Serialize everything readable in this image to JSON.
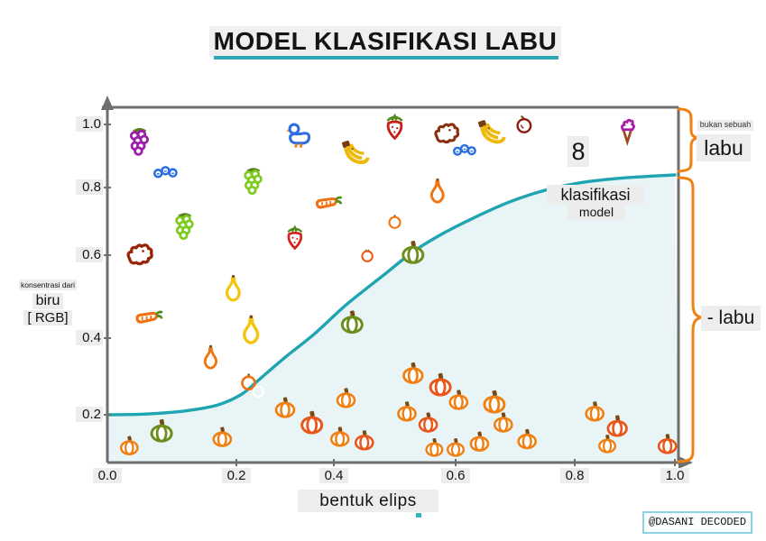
{
  "title": "MODEL KLASIFIKASI LABU",
  "labels": {
    "ylabel_line1": "konsentrasi dari",
    "ylabel_line2": "biru",
    "ylabel_line3": "[ RGB]",
    "xlabel": "bentuk elips",
    "curve_label_line1": "klasifikasi",
    "curve_label_line2": "model",
    "right_top_line1": "bukan sebuah",
    "right_top_line2": "labu",
    "right_bottom": "- labu",
    "watermark": "@DASANI DECODED"
  },
  "colors": {
    "curve": "#1fa5b2",
    "curve_fill": "#e8f4f5",
    "axis": "#6e6e6e",
    "brace": "#f08012",
    "title_underline": "#2aa6b4",
    "chip_bg": "#ededed",
    "watermark_border": "#90d2e3"
  },
  "chart_data": {
    "type": "scatter",
    "title": "MODEL KLASIFIKASI LABU",
    "xlabel": "bentuk elips",
    "ylabel": "konsentrasi dari biru [ RGB]",
    "xlim": [
      0,
      1
    ],
    "ylim": [
      0,
      1
    ],
    "x_ticks": [
      "0.0",
      "0.2",
      "0.4",
      "0.6",
      "0.8",
      "1.0"
    ],
    "y_ticks": [
      "0.2",
      "0.4",
      "0.6",
      "0.8",
      "1.0"
    ],
    "grid": false,
    "curve": {
      "name": "klasifikasi model",
      "description": "sigmoid decision boundary, area below filled",
      "points": [
        [
          0,
          0.2
        ],
        [
          0.06,
          0.202
        ],
        [
          0.12,
          0.21
        ],
        [
          0.17,
          0.225
        ],
        [
          0.21,
          0.253
        ],
        [
          0.245,
          0.29
        ],
        [
          0.3,
          0.35
        ],
        [
          0.36,
          0.41
        ],
        [
          0.42,
          0.48
        ],
        [
          0.48,
          0.55
        ],
        [
          0.53,
          0.61
        ],
        [
          0.575,
          0.66
        ],
        [
          0.63,
          0.71
        ],
        [
          0.69,
          0.757
        ],
        [
          0.75,
          0.792
        ],
        [
          0.81,
          0.815
        ],
        [
          0.88,
          0.828
        ],
        [
          0.94,
          0.835
        ],
        [
          1.0,
          0.84
        ]
      ]
    },
    "series": [
      {
        "name": "labu (below curve)",
        "items": [
          {
            "x": 0.034,
            "y": 0.073,
            "item": "pumpkin",
            "color": "#f08012",
            "size": 25
          },
          {
            "x": 0.084,
            "y": 0.135,
            "item": "pumpkin",
            "color": "#6d8d1d",
            "size": 30
          },
          {
            "x": 0.178,
            "y": 0.109,
            "item": "pumpkin",
            "color": "#f08012",
            "size": 26
          },
          {
            "x": 0.3,
            "y": 0.22,
            "item": "pumpkin",
            "color": "#f08012",
            "size": 27
          },
          {
            "x": 0.355,
            "y": 0.17,
            "item": "pumpkin",
            "color": "#e9561a",
            "size": 30
          },
          {
            "x": 0.42,
            "y": 0.245,
            "item": "pumpkin",
            "color": "#f08012",
            "size": 26
          },
          {
            "x": 0.41,
            "y": 0.11,
            "item": "pumpkin",
            "color": "#f08012",
            "size": 26
          },
          {
            "x": 0.45,
            "y": 0.095,
            "item": "pumpkin",
            "color": "#e9561a",
            "size": 26
          },
          {
            "x": 0.43,
            "y": 0.44,
            "item": "pumpkin",
            "color": "#6d8d1d",
            "size": 30
          },
          {
            "x": 0.53,
            "y": 0.61,
            "item": "pumpkin",
            "color": "#6d8d1d",
            "size": 30
          },
          {
            "x": 0.53,
            "y": 0.31,
            "item": "pumpkin",
            "color": "#f08012",
            "size": 28
          },
          {
            "x": 0.575,
            "y": 0.28,
            "item": "pumpkin",
            "color": "#e9561a",
            "size": 30
          },
          {
            "x": 0.52,
            "y": 0.21,
            "item": "pumpkin",
            "color": "#f08012",
            "size": 26
          },
          {
            "x": 0.555,
            "y": 0.17,
            "item": "pumpkin",
            "color": "#e9561a",
            "size": 26
          },
          {
            "x": 0.605,
            "y": 0.24,
            "item": "pumpkin",
            "color": "#f08012",
            "size": 26
          },
          {
            "x": 0.565,
            "y": 0.065,
            "item": "pumpkin",
            "color": "#f08012",
            "size": 24
          },
          {
            "x": 0.6,
            "y": 0.065,
            "item": "pumpkin",
            "color": "#f08012",
            "size": 24
          },
          {
            "x": 0.665,
            "y": 0.235,
            "item": "pumpkin",
            "color": "#f08012",
            "size": 30
          },
          {
            "x": 0.68,
            "y": 0.17,
            "item": "pumpkin",
            "color": "#f08012",
            "size": 26
          },
          {
            "x": 0.64,
            "y": 0.09,
            "item": "pumpkin",
            "color": "#f08012",
            "size": 26
          },
          {
            "x": 0.72,
            "y": 0.1,
            "item": "pumpkin",
            "color": "#f08012",
            "size": 26
          },
          {
            "x": 0.84,
            "y": 0.21,
            "item": "pumpkin",
            "color": "#f08012",
            "size": 26
          },
          {
            "x": 0.885,
            "y": 0.155,
            "item": "pumpkin",
            "color": "#e9561a",
            "size": 28
          },
          {
            "x": 0.865,
            "y": 0.08,
            "item": "pumpkin",
            "color": "#f08012",
            "size": 24
          },
          {
            "x": 0.985,
            "y": 0.08,
            "item": "pumpkin",
            "color": "#e9561a",
            "size": 26
          }
        ]
      },
      {
        "name": "bukan labu (above curve)",
        "items": [
          {
            "x": 0.05,
            "y": 0.95,
            "item": "grapes",
            "color": "#9b1fa8",
            "size": 34
          },
          {
            "x": 0.09,
            "y": 0.85,
            "item": "berries",
            "color": "#2b6fe0",
            "size": 28
          },
          {
            "x": 0.33,
            "y": 0.97,
            "item": "duck",
            "color": "#2e6ee0",
            "size": 33
          },
          {
            "x": 0.235,
            "y": 0.825,
            "item": "grapes",
            "color": "#7ecb20",
            "size": 33
          },
          {
            "x": 0.12,
            "y": 0.69,
            "item": "grapes",
            "color": "#7ecb20",
            "size": 33
          },
          {
            "x": 0.05,
            "y": 0.6,
            "item": "dog",
            "color": "#992508",
            "size": 36
          },
          {
            "x": 0.32,
            "y": 0.65,
            "item": "strawberry",
            "color": "#d4231c",
            "size": 28
          },
          {
            "x": 0.065,
            "y": 0.45,
            "item": "carrot",
            "color": "#f07012",
            "size": 34
          },
          {
            "x": 0.195,
            "y": 0.52,
            "item": "pear",
            "color": "#f2c50f",
            "size": 33
          },
          {
            "x": 0.23,
            "y": 0.42,
            "item": "pear",
            "color": "#f2c50f",
            "size": 36
          },
          {
            "x": 0.16,
            "y": 0.35,
            "item": "pear",
            "color": "#ef7612",
            "size": 30
          },
          {
            "x": 0.225,
            "y": 0.285,
            "item": "ring",
            "color": "#f07010",
            "size": 21
          },
          {
            "x": 0.245,
            "y": 0.262,
            "item": "ring",
            "color": "#ffffff",
            "size": 17
          },
          {
            "x": 0.39,
            "y": 0.755,
            "item": "carrot",
            "color": "#f07012",
            "size": 33
          },
          {
            "x": 0.435,
            "y": 0.91,
            "item": "banana",
            "color": "#edb90a",
            "size": 36
          },
          {
            "x": 0.5,
            "y": 0.99,
            "item": "strawberry",
            "color": "#c21f1a",
            "size": 30
          },
          {
            "x": 0.5,
            "y": 0.7,
            "item": "orange",
            "color": "#ef7612",
            "size": 20
          },
          {
            "x": 0.455,
            "y": 0.6,
            "item": "tomato",
            "color": "#ef5512",
            "size": 19
          },
          {
            "x": 0.57,
            "y": 0.79,
            "item": "pear",
            "color": "#ef7612",
            "size": 31
          },
          {
            "x": 0.585,
            "y": 0.97,
            "item": "dog",
            "color": "#8a3010",
            "size": 34
          },
          {
            "x": 0.615,
            "y": 0.92,
            "item": "berries",
            "color": "#2b6fe0",
            "size": 27
          },
          {
            "x": 0.66,
            "y": 0.975,
            "item": "banana",
            "color": "#edb90a",
            "size": 36
          },
          {
            "x": 0.715,
            "y": 1.0,
            "item": "apple",
            "color": "#8e1a10",
            "size": 23
          },
          {
            "x": 0.905,
            "y": 0.98,
            "item": "icecream",
            "color": "#a81ca8",
            "size": 30
          }
        ]
      }
    ],
    "annotations": [
      {
        "text": "8",
        "x": 0.81,
        "y": 0.915
      }
    ],
    "legend_position": "none"
  }
}
